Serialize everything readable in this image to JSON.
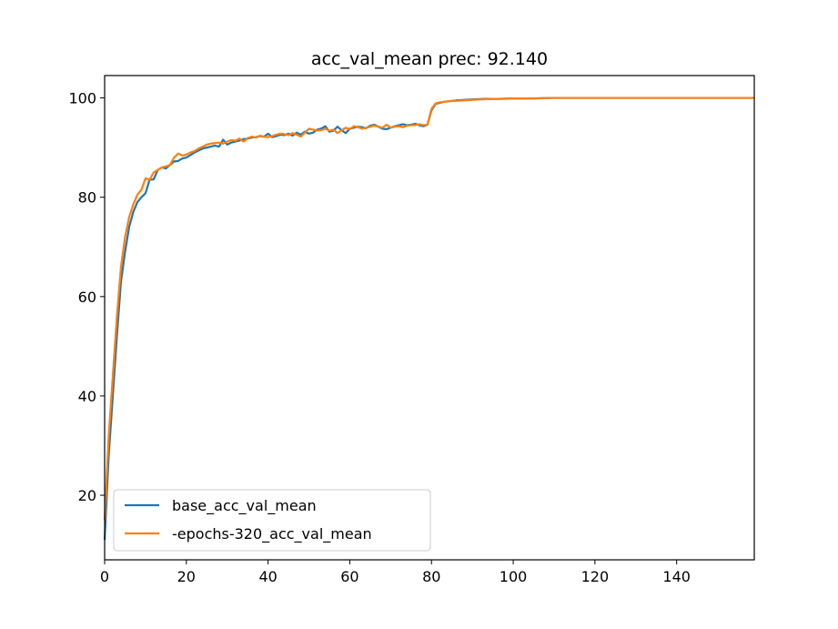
{
  "chart_data": {
    "type": "line",
    "title": "acc_val_mean prec: 92.140",
    "xlabel": "",
    "ylabel": "",
    "xlim": [
      0,
      159
    ],
    "ylim": [
      7,
      104.5
    ],
    "xticks": [
      0,
      20,
      40,
      60,
      80,
      100,
      120,
      140
    ],
    "yticks": [
      20,
      40,
      60,
      80,
      100
    ],
    "grid": false,
    "legend_position": "lower-left",
    "series": [
      {
        "name": "base_acc_val_mean",
        "color": "#1f77b4",
        "points": [
          [
            0,
            11
          ],
          [
            1,
            28
          ],
          [
            2,
            40
          ],
          [
            3,
            52
          ],
          [
            4,
            63
          ],
          [
            5,
            69
          ],
          [
            6,
            74
          ],
          [
            7,
            77
          ],
          [
            8,
            79
          ],
          [
            9,
            80
          ],
          [
            10,
            80.8
          ],
          [
            11,
            83.5
          ],
          [
            12,
            83.6
          ],
          [
            13,
            85.5
          ],
          [
            14,
            86
          ],
          [
            15,
            85.8
          ],
          [
            16,
            86.5
          ],
          [
            17,
            87.2
          ],
          [
            18,
            87.3
          ],
          [
            19,
            87.8
          ],
          [
            20,
            88
          ],
          [
            21,
            88.5
          ],
          [
            22,
            89
          ],
          [
            23,
            89.4
          ],
          [
            24,
            89.8
          ],
          [
            25,
            90
          ],
          [
            26,
            90.2
          ],
          [
            27,
            90.4
          ],
          [
            28,
            90.2
          ],
          [
            29,
            91.6
          ],
          [
            30,
            90.6
          ],
          [
            31,
            91
          ],
          [
            32,
            91.2
          ],
          [
            33,
            91.4
          ],
          [
            34,
            91.7
          ],
          [
            35,
            91.8
          ],
          [
            36,
            92
          ],
          [
            37,
            92.1
          ],
          [
            38,
            92.3
          ],
          [
            39,
            92.2
          ],
          [
            40,
            92.8
          ],
          [
            41,
            92.1
          ],
          [
            42,
            92.3
          ],
          [
            43,
            92.6
          ],
          [
            44,
            92.5
          ],
          [
            45,
            92.8
          ],
          [
            46,
            92.4
          ],
          [
            47,
            93
          ],
          [
            48,
            92.6
          ],
          [
            49,
            93.2
          ],
          [
            50,
            92.8
          ],
          [
            51,
            93
          ],
          [
            52,
            93.6
          ],
          [
            53,
            93.8
          ],
          [
            54,
            94.3
          ],
          [
            55,
            93.2
          ],
          [
            56,
            93.4
          ],
          [
            57,
            94.2
          ],
          [
            58,
            93.5
          ],
          [
            59,
            92.9
          ],
          [
            60,
            93.8
          ],
          [
            61,
            94
          ],
          [
            62,
            94.2
          ],
          [
            63,
            94.1
          ],
          [
            64,
            93.9
          ],
          [
            65,
            94.4
          ],
          [
            66,
            94.6
          ],
          [
            67,
            94.2
          ],
          [
            68,
            93.8
          ],
          [
            69,
            93.7
          ],
          [
            70,
            94
          ],
          [
            71,
            94.3
          ],
          [
            72,
            94.5
          ],
          [
            73,
            94.7
          ],
          [
            74,
            94.5
          ],
          [
            75,
            94.6
          ],
          [
            76,
            94.8
          ],
          [
            77,
            94.5
          ],
          [
            78,
            94.3
          ],
          [
            79,
            94.6
          ],
          [
            80,
            97.5
          ],
          [
            81,
            98.8
          ],
          [
            82,
            99
          ],
          [
            83,
            99.2
          ],
          [
            84,
            99.3
          ],
          [
            85,
            99.4
          ],
          [
            86,
            99.5
          ],
          [
            88,
            99.6
          ],
          [
            90,
            99.7
          ],
          [
            93,
            99.8
          ],
          [
            96,
            99.8
          ],
          [
            100,
            99.9
          ],
          [
            105,
            99.9
          ],
          [
            110,
            100
          ],
          [
            115,
            100
          ],
          [
            120,
            100
          ],
          [
            130,
            100
          ],
          [
            140,
            100
          ],
          [
            150,
            100
          ],
          [
            159,
            100
          ]
        ]
      },
      {
        "name": "-epochs-320_acc_val_mean",
        "color": "#ff7f0e",
        "points": [
          [
            0,
            15
          ],
          [
            1,
            32
          ],
          [
            2,
            44
          ],
          [
            3,
            56
          ],
          [
            4,
            66
          ],
          [
            5,
            72
          ],
          [
            6,
            76
          ],
          [
            7,
            78.5
          ],
          [
            8,
            80.5
          ],
          [
            9,
            81.5
          ],
          [
            10,
            83.8
          ],
          [
            11,
            83.5
          ],
          [
            12,
            85
          ],
          [
            13,
            85.5
          ],
          [
            14,
            86
          ],
          [
            15,
            86.2
          ],
          [
            16,
            86.5
          ],
          [
            17,
            88
          ],
          [
            18,
            88.8
          ],
          [
            19,
            88.4
          ],
          [
            20,
            88.6
          ],
          [
            21,
            89
          ],
          [
            22,
            89.3
          ],
          [
            23,
            89.8
          ],
          [
            24,
            90.2
          ],
          [
            25,
            90.6
          ],
          [
            26,
            90.8
          ],
          [
            27,
            90.9
          ],
          [
            28,
            91
          ],
          [
            29,
            90.8
          ],
          [
            30,
            91.2
          ],
          [
            31,
            91.5
          ],
          [
            32,
            91.4
          ],
          [
            33,
            91.8
          ],
          [
            34,
            91.2
          ],
          [
            35,
            91.9
          ],
          [
            36,
            92.2
          ],
          [
            37,
            92
          ],
          [
            38,
            92.4
          ],
          [
            39,
            92.2
          ],
          [
            40,
            92.1
          ],
          [
            41,
            92.3
          ],
          [
            42,
            92.6
          ],
          [
            43,
            92.8
          ],
          [
            44,
            92.7
          ],
          [
            45,
            92.5
          ],
          [
            46,
            92.9
          ],
          [
            47,
            92.6
          ],
          [
            48,
            92.2
          ],
          [
            49,
            93
          ],
          [
            50,
            93.8
          ],
          [
            51,
            93.6
          ],
          [
            52,
            93.4
          ],
          [
            53,
            93.5
          ],
          [
            54,
            93.8
          ],
          [
            55,
            93.4
          ],
          [
            56,
            93.6
          ],
          [
            57,
            92.9
          ],
          [
            58,
            93.5
          ],
          [
            59,
            94
          ],
          [
            60,
            93.7
          ],
          [
            61,
            94.3
          ],
          [
            62,
            94.1
          ],
          [
            63,
            93.8
          ],
          [
            64,
            94
          ],
          [
            65,
            94.2
          ],
          [
            66,
            94.4
          ],
          [
            67,
            94.2
          ],
          [
            68,
            94
          ],
          [
            69,
            94.6
          ],
          [
            70,
            94
          ],
          [
            71,
            94.2
          ],
          [
            72,
            94.3
          ],
          [
            73,
            94.1
          ],
          [
            74,
            94.4
          ],
          [
            75,
            94.5
          ],
          [
            76,
            94.5
          ],
          [
            77,
            94.7
          ],
          [
            78,
            94.5
          ],
          [
            79,
            94.6
          ],
          [
            80,
            97.8
          ],
          [
            81,
            98.9
          ],
          [
            82,
            99.1
          ],
          [
            83,
            99.2
          ],
          [
            84,
            99.3
          ],
          [
            85,
            99.4
          ],
          [
            86,
            99.4
          ],
          [
            88,
            99.5
          ],
          [
            90,
            99.6
          ],
          [
            92,
            99.7
          ],
          [
            95,
            99.8
          ],
          [
            98,
            99.8
          ],
          [
            100,
            99.9
          ],
          [
            105,
            99.9
          ],
          [
            110,
            100
          ],
          [
            115,
            100
          ],
          [
            120,
            100
          ],
          [
            130,
            100
          ],
          [
            140,
            100
          ],
          [
            150,
            100
          ],
          [
            159,
            100
          ]
        ]
      }
    ]
  }
}
